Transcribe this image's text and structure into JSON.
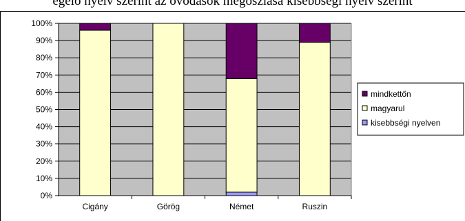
{
  "header_text": "egelő nyelv szerint az óvodások megoszlása kisebbségi nyelv szerint",
  "colors": {
    "plot_bg": "#c0c0c0",
    "grid": "#000000",
    "mindkettőn": "#660066",
    "magyarul": "#ffffcc",
    "kisebbségi nyelven": "#9999ff"
  },
  "chart_data": {
    "type": "bar",
    "stacked": true,
    "categories": [
      "Cigány",
      "Görög",
      "Német",
      "Ruszin"
    ],
    "series": [
      {
        "name": "kisebbségi nyelven",
        "values": [
          0,
          0,
          2,
          0
        ]
      },
      {
        "name": "magyarul",
        "values": [
          96,
          100,
          66,
          89
        ]
      },
      {
        "name": "mindkettőn",
        "values": [
          4,
          0,
          32,
          11
        ]
      }
    ],
    "yticks": [
      "0%",
      "10%",
      "20%",
      "30%",
      "40%",
      "50%",
      "60%",
      "70%",
      "80%",
      "90%",
      "100%"
    ],
    "ylim": [
      0,
      100
    ],
    "grid": true,
    "legend": "right",
    "legend_order": [
      "mindkettőn",
      "magyarul",
      "kisebbségi nyelven"
    ]
  }
}
